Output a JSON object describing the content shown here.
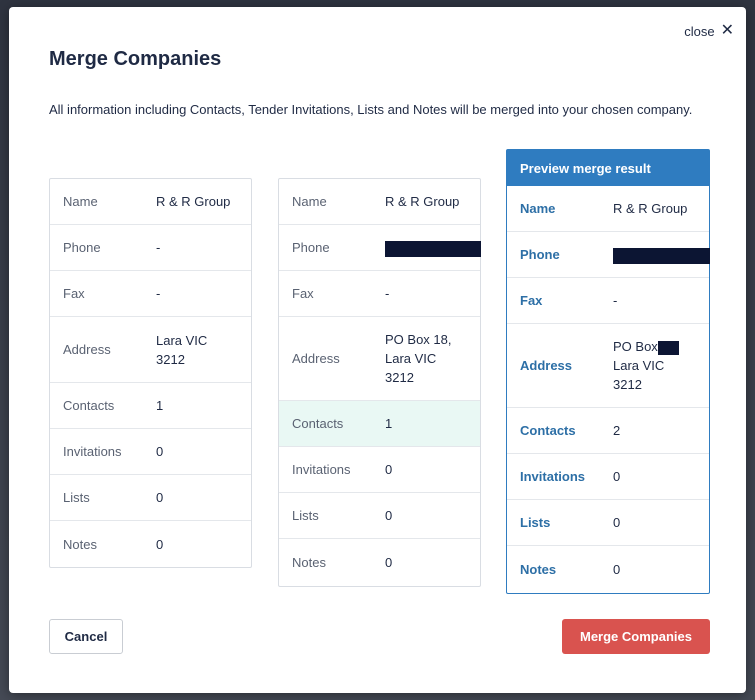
{
  "modal": {
    "close_label": "close",
    "title": "Merge Companies",
    "description": "All information including Contacts, Tender Invitations, Lists and Notes will be merged into your chosen company."
  },
  "company_a": {
    "name_label": "Name",
    "name": "R & R Group",
    "phone_label": "Phone",
    "phone": "-",
    "fax_label": "Fax",
    "fax": "-",
    "address_label": "Address",
    "address_line1": "Lara VIC",
    "address_line2": "3212",
    "contacts_label": "Contacts",
    "contacts": "1",
    "invitations_label": "Invitations",
    "invitations": "0",
    "lists_label": "Lists",
    "lists": "0",
    "notes_label": "Notes",
    "notes": "0"
  },
  "company_b": {
    "name_label": "Name",
    "name": "R & R Group",
    "phone_label": "Phone",
    "fax_label": "Fax",
    "fax": "-",
    "address_label": "Address",
    "address_line1": "PO Box 18,",
    "address_line2": "Lara VIC",
    "address_line3": "3212",
    "contacts_label": "Contacts",
    "contacts": "1",
    "invitations_label": "Invitations",
    "invitations": "0",
    "lists_label": "Lists",
    "lists": "0",
    "notes_label": "Notes",
    "notes": "0"
  },
  "preview": {
    "heading": "Preview merge result",
    "name_label": "Name",
    "name": "R & R Group",
    "phone_label": "Phone",
    "fax_label": "Fax",
    "fax": "-",
    "address_label": "Address",
    "address_line1": "PO Box",
    "address_line2": "Lara VIC",
    "address_line3": "3212",
    "contacts_label": "Contacts",
    "contacts": "2",
    "invitations_label": "Invitations",
    "invitations": "0",
    "lists_label": "Lists",
    "lists": "0",
    "notes_label": "Notes",
    "notes": "0"
  },
  "actions": {
    "cancel_label": "Cancel",
    "merge_label": "Merge Companies"
  },
  "colors": {
    "accent_blue": "#2f7cc0",
    "merge_red": "#d9534f",
    "highlight_mint": "#e9f8f4",
    "title_navy": "#1f2a44"
  }
}
